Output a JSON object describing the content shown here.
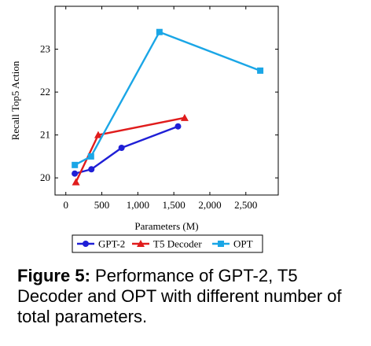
{
  "chart_data": {
    "type": "line",
    "xlabel": "Parameters (M)",
    "ylabel": "Recall Top5 Action",
    "xlim": [
      -150,
      2950
    ],
    "ylim": [
      19.6,
      24.0
    ],
    "xticks": [
      0,
      500,
      1000,
      1500,
      2000,
      2500
    ],
    "xtick_labels": [
      "0",
      "500",
      "1,000",
      "1,500",
      "2,000",
      "2,500"
    ],
    "yticks": [
      20,
      21,
      22,
      23
    ],
    "ytick_labels": [
      "20",
      "21",
      "22",
      "23"
    ],
    "grid": false,
    "legend_position": "bottom-center",
    "series": [
      {
        "name": "GPT-2",
        "color": "#1f1fd6",
        "marker": "circle",
        "x": [
          124,
          355,
          774,
          1558
        ],
        "y": [
          20.1,
          20.2,
          20.7,
          21.2
        ]
      },
      {
        "name": "T5 Decoder",
        "color": "#e01c1c",
        "marker": "triangle",
        "x": [
          140,
          450,
          1650
        ],
        "y": [
          19.9,
          21.0,
          21.4
        ]
      },
      {
        "name": "OPT",
        "color": "#1aa6e6",
        "marker": "square",
        "x": [
          125,
          350,
          1300,
          2700
        ],
        "y": [
          20.3,
          20.5,
          23.4,
          22.5
        ]
      }
    ]
  },
  "caption": {
    "label": "Figure 5:",
    "text": " Performance of GPT-2, T5 Decoder and OPT with different number of total parameters."
  }
}
